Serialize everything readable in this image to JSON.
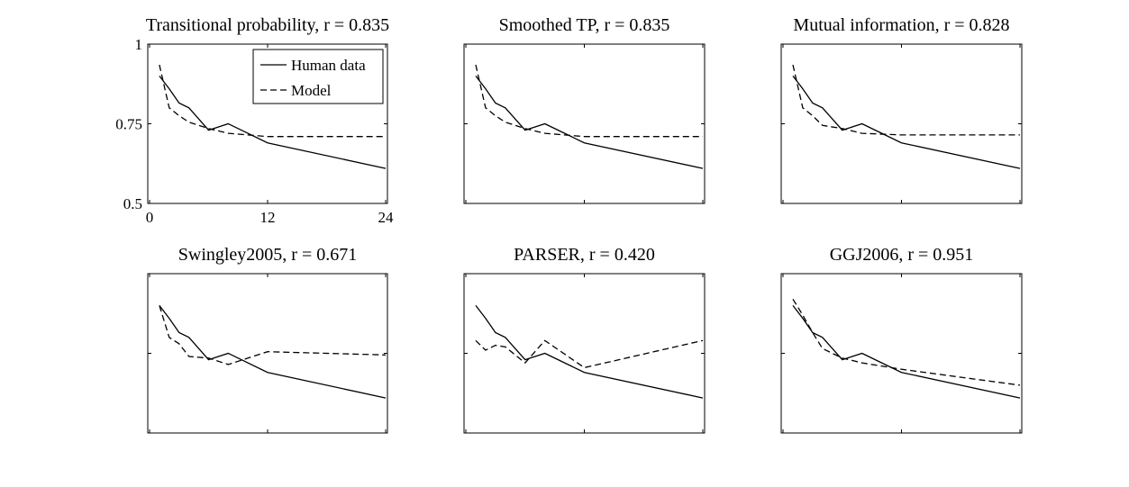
{
  "chart_data": [
    {
      "type": "line",
      "title": "Transitional probability, r = 0.835",
      "xlim": [
        0,
        24
      ],
      "ylim": [
        0.5,
        1
      ],
      "xticks": [
        0,
        12,
        24
      ],
      "yticks": [
        0.5,
        0.75,
        1
      ],
      "xtick_labels": [
        "0",
        "12",
        "24"
      ],
      "ytick_labels": [
        "0.5",
        "0.75",
        "1"
      ],
      "legend": {
        "placement": "top-right",
        "entries": [
          "Human data",
          "Model"
        ]
      },
      "series": [
        {
          "name": "Human data",
          "style": "solid",
          "x": [
            1,
            2,
            3,
            4,
            6,
            8,
            12,
            24
          ],
          "y": [
            0.9,
            0.86,
            0.815,
            0.8,
            0.73,
            0.75,
            0.69,
            0.61
          ]
        },
        {
          "name": "Model",
          "style": "dashed",
          "x": [
            1,
            2,
            3,
            4,
            6,
            8,
            12,
            24
          ],
          "y": [
            0.935,
            0.8,
            0.775,
            0.755,
            0.735,
            0.72,
            0.71,
            0.71
          ]
        }
      ]
    },
    {
      "type": "line",
      "title": "Smoothed TP, r = 0.835",
      "xlim": [
        0,
        24
      ],
      "ylim": [
        0.5,
        1
      ],
      "xticks": [
        0,
        12,
        24
      ],
      "yticks": [
        0.5,
        0.75,
        1
      ],
      "series": [
        {
          "name": "Human data",
          "style": "solid",
          "x": [
            1,
            2,
            3,
            4,
            6,
            8,
            12,
            24
          ],
          "y": [
            0.9,
            0.86,
            0.815,
            0.8,
            0.73,
            0.75,
            0.69,
            0.61
          ]
        },
        {
          "name": "Model",
          "style": "dashed",
          "x": [
            1,
            2,
            3,
            4,
            6,
            8,
            12,
            24
          ],
          "y": [
            0.935,
            0.8,
            0.775,
            0.755,
            0.735,
            0.72,
            0.71,
            0.71
          ]
        }
      ]
    },
    {
      "type": "line",
      "title": "Mutual information, r = 0.828",
      "xlim": [
        0,
        24
      ],
      "ylim": [
        0.5,
        1
      ],
      "xticks": [
        0,
        12,
        24
      ],
      "yticks": [
        0.5,
        0.75,
        1
      ],
      "series": [
        {
          "name": "Human data",
          "style": "solid",
          "x": [
            1,
            2,
            3,
            4,
            6,
            8,
            12,
            24
          ],
          "y": [
            0.9,
            0.86,
            0.815,
            0.8,
            0.73,
            0.75,
            0.69,
            0.61
          ]
        },
        {
          "name": "Model",
          "style": "dashed",
          "x": [
            1,
            2,
            3,
            4,
            6,
            8,
            12,
            24
          ],
          "y": [
            0.935,
            0.8,
            0.775,
            0.745,
            0.735,
            0.72,
            0.715,
            0.715
          ]
        }
      ]
    },
    {
      "type": "line",
      "title": "Swingley2005, r = 0.671",
      "xlim": [
        0,
        24
      ],
      "ylim": [
        0.5,
        1
      ],
      "xticks": [
        0,
        12,
        24
      ],
      "yticks": [
        0.5,
        0.75,
        1
      ],
      "series": [
        {
          "name": "Human data",
          "style": "solid",
          "x": [
            1,
            2,
            3,
            4,
            6,
            8,
            12,
            24
          ],
          "y": [
            0.9,
            0.86,
            0.815,
            0.8,
            0.73,
            0.75,
            0.69,
            0.61
          ]
        },
        {
          "name": "Model",
          "style": "dashed",
          "x": [
            1,
            2,
            3,
            4,
            6,
            8,
            12,
            24
          ],
          "y": [
            0.9,
            0.8,
            0.78,
            0.74,
            0.735,
            0.715,
            0.755,
            0.745
          ]
        }
      ]
    },
    {
      "type": "line",
      "title": "PARSER, r = 0.420",
      "xlim": [
        0,
        24
      ],
      "ylim": [
        0.5,
        1
      ],
      "xticks": [
        0,
        12,
        24
      ],
      "yticks": [
        0.5,
        0.75,
        1
      ],
      "series": [
        {
          "name": "Human data",
          "style": "solid",
          "x": [
            1,
            2,
            3,
            4,
            6,
            8,
            12,
            24
          ],
          "y": [
            0.9,
            0.86,
            0.815,
            0.8,
            0.73,
            0.75,
            0.69,
            0.61
          ]
        },
        {
          "name": "Model",
          "style": "dashed",
          "x": [
            1,
            2,
            3,
            4,
            6,
            8,
            12,
            24
          ],
          "y": [
            0.79,
            0.76,
            0.775,
            0.77,
            0.72,
            0.79,
            0.705,
            0.79
          ]
        }
      ]
    },
    {
      "type": "line",
      "title": "GGJ2006, r = 0.951",
      "xlim": [
        0,
        24
      ],
      "ylim": [
        0.5,
        1
      ],
      "xticks": [
        0,
        12,
        24
      ],
      "yticks": [
        0.5,
        0.75,
        1
      ],
      "series": [
        {
          "name": "Human data",
          "style": "solid",
          "x": [
            1,
            2,
            3,
            4,
            6,
            8,
            12,
            24
          ],
          "y": [
            0.9,
            0.86,
            0.815,
            0.8,
            0.73,
            0.75,
            0.69,
            0.61
          ]
        },
        {
          "name": "Model",
          "style": "dashed",
          "x": [
            1,
            2,
            3,
            4,
            6,
            8,
            12,
            24
          ],
          "y": [
            0.92,
            0.87,
            0.815,
            0.765,
            0.735,
            0.72,
            0.7,
            0.65
          ]
        }
      ]
    }
  ]
}
